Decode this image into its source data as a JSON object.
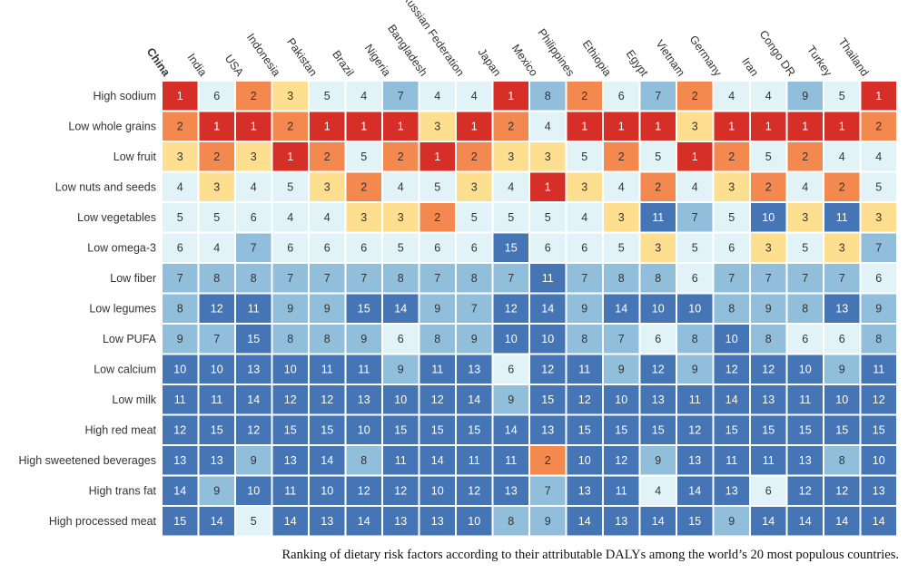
{
  "chart_data": {
    "type": "heatmap",
    "title": "",
    "xlabel": "",
    "ylabel": "",
    "value_semantics": "rank (1 = largest attributable DALYs)",
    "highlighted_column": "China",
    "columns": [
      "China",
      "India",
      "USA",
      "Indonesia",
      "Pakistan",
      "Brazil",
      "Nigeria",
      "Bangladesh",
      "Russian Federation",
      "Japan",
      "Mexico",
      "Philippines",
      "Ethiopia",
      "Egypt",
      "Vietnam",
      "Germany",
      "Iran",
      "Congo DR",
      "Turkey",
      "Thailand"
    ],
    "rows": [
      "High sodium",
      "Low whole grains",
      "Low fruit",
      "Low nuts and seeds",
      "Low vegetables",
      "Low omega-3",
      "Low fiber",
      "Low legumes",
      "Low PUFA",
      "Low calcium",
      "Low milk",
      "High red meat",
      "High sweetened beverages",
      "High trans fat",
      "High processed meat"
    ],
    "values": [
      [
        1,
        6,
        2,
        3,
        5,
        4,
        7,
        4,
        4,
        1,
        8,
        2,
        6,
        7,
        2,
        4,
        4,
        9,
        5,
        1
      ],
      [
        2,
        1,
        1,
        2,
        1,
        1,
        1,
        3,
        1,
        2,
        4,
        1,
        1,
        1,
        3,
        1,
        1,
        1,
        1,
        2
      ],
      [
        3,
        2,
        3,
        1,
        2,
        5,
        2,
        1,
        2,
        3,
        3,
        5,
        2,
        5,
        1,
        2,
        5,
        2,
        4,
        4
      ],
      [
        4,
        3,
        4,
        5,
        3,
        2,
        4,
        5,
        3,
        4,
        1,
        3,
        4,
        2,
        4,
        3,
        2,
        4,
        2,
        5
      ],
      [
        5,
        5,
        6,
        4,
        4,
        3,
        3,
        2,
        5,
        5,
        5,
        4,
        3,
        11,
        7,
        5,
        10,
        3,
        11,
        3
      ],
      [
        6,
        4,
        7,
        6,
        6,
        6,
        5,
        6,
        6,
        15,
        6,
        6,
        5,
        3,
        5,
        6,
        3,
        5,
        3,
        7
      ],
      [
        7,
        8,
        8,
        7,
        7,
        7,
        8,
        7,
        8,
        7,
        11,
        7,
        8,
        8,
        6,
        7,
        7,
        7,
        7,
        6
      ],
      [
        8,
        12,
        11,
        9,
        9,
        15,
        14,
        9,
        7,
        12,
        14,
        9,
        14,
        10,
        10,
        8,
        9,
        8,
        13,
        9
      ],
      [
        9,
        7,
        15,
        8,
        8,
        9,
        6,
        8,
        9,
        10,
        10,
        8,
        7,
        6,
        8,
        10,
        8,
        6,
        6,
        8
      ],
      [
        10,
        10,
        13,
        10,
        11,
        11,
        9,
        11,
        13,
        6,
        12,
        11,
        9,
        12,
        9,
        12,
        12,
        10,
        9,
        11
      ],
      [
        11,
        11,
        14,
        12,
        12,
        13,
        10,
        12,
        14,
        9,
        15,
        12,
        10,
        13,
        11,
        14,
        13,
        11,
        10,
        12
      ],
      [
        12,
        15,
        12,
        15,
        15,
        10,
        15,
        15,
        15,
        14,
        13,
        15,
        15,
        15,
        12,
        15,
        15,
        15,
        15,
        15
      ],
      [
        13,
        13,
        9,
        13,
        14,
        8,
        11,
        14,
        11,
        11,
        2,
        10,
        12,
        9,
        13,
        11,
        11,
        13,
        8,
        10
      ],
      [
        14,
        9,
        10,
        11,
        10,
        12,
        12,
        10,
        12,
        13,
        7,
        13,
        11,
        4,
        14,
        13,
        6,
        12,
        12,
        13
      ],
      [
        15,
        14,
        5,
        14,
        13,
        14,
        13,
        13,
        10,
        8,
        9,
        14,
        13,
        14,
        15,
        9,
        14,
        14,
        14,
        14
      ]
    ],
    "color_scale": {
      "1": "#d62f27",
      "2": "#f4894f",
      "3": "#fedf8f",
      "4": "#e2f3f8",
      "5": "#e2f3f8",
      "6": "#e2f3f8",
      "7": "#91bfdb",
      "8": "#91bfdb",
      "9": "#91bfdb",
      "10": "#4575b4",
      "11": "#4575b4",
      "12": "#4575b4",
      "13": "#4575b4",
      "14": "#4575b4",
      "15": "#4575b4"
    },
    "text_colors": {
      "light": "#ffffff",
      "dark": "#333333"
    }
  },
  "caption": "Ranking of dietary risk factors according to their attributable DALYs among the world’s 20 most populous countries."
}
